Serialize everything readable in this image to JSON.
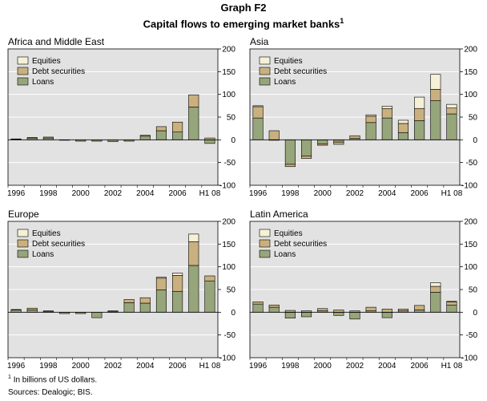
{
  "title": {
    "line1": "Graph F2",
    "line2": "Capital flows to emerging market banks",
    "line2_sup": "1"
  },
  "footnotes": {
    "note_sup": "1",
    "note": "In billions of US dollars.",
    "sources": "Sources: Dealogic; BIS."
  },
  "colors": {
    "equities": "#f5f0d8",
    "debt": "#c9b07e",
    "loans": "#97a57a",
    "grid": "#ffffff",
    "frame": "#000000"
  },
  "chart_data": [
    {
      "type": "bar",
      "stacked": true,
      "title": "Africa and Middle East",
      "x": [
        "1996",
        "1997",
        "1998",
        "1999",
        "2000",
        "2001",
        "2002",
        "2003",
        "2004",
        "2005",
        "2006",
        "2007",
        "H1 08"
      ],
      "x_tick_labels": [
        "1996",
        "1998",
        "2000",
        "2002",
        "2004",
        "2006",
        "H1 08"
      ],
      "ylim": [
        -100,
        200
      ],
      "y_ticks": [
        200,
        150,
        100,
        50,
        0,
        -50,
        -100
      ],
      "legend": [
        "Equities",
        "Debt securities",
        "Loans"
      ],
      "legend_position": "top-left",
      "series": [
        {
          "name": "Equities",
          "values": [
            0,
            0,
            0,
            0,
            0,
            0,
            0,
            0,
            0,
            0,
            0,
            0,
            0
          ]
        },
        {
          "name": "Debt securities",
          "values": [
            1,
            1,
            2,
            0,
            0,
            0,
            0,
            0,
            2,
            9,
            22,
            27,
            4
          ]
        },
        {
          "name": "Loans",
          "values": [
            1,
            4,
            4,
            -1,
            -3,
            -3,
            -4,
            -3,
            8,
            20,
            17,
            72,
            -8
          ]
        }
      ]
    },
    {
      "type": "bar",
      "stacked": true,
      "title": "Asia",
      "x": [
        "1996",
        "1997",
        "1998",
        "1999",
        "2000",
        "2001",
        "2002",
        "2003",
        "2004",
        "2005",
        "2006",
        "2007",
        "H1 08"
      ],
      "x_tick_labels": [
        "1996",
        "1998",
        "2000",
        "2002",
        "2004",
        "2006",
        "H1 08"
      ],
      "ylim": [
        -100,
        200
      ],
      "y_ticks": [
        200,
        150,
        100,
        50,
        0,
        -50,
        -100
      ],
      "legend": [
        "Equities",
        "Debt securities",
        "Loans"
      ],
      "legend_position": "top-left",
      "series": [
        {
          "name": "Equities",
          "values": [
            2,
            0,
            0,
            0,
            0,
            0,
            0,
            3,
            5,
            7,
            25,
            33,
            8
          ]
        },
        {
          "name": "Debt securities",
          "values": [
            25,
            20,
            -5,
            -5,
            -3,
            -5,
            6,
            14,
            21,
            20,
            27,
            25,
            13
          ]
        },
        {
          "name": "Loans",
          "values": [
            48,
            -1,
            -54,
            -36,
            -9,
            -5,
            3,
            38,
            48,
            16,
            42,
            86,
            57
          ]
        }
      ]
    },
    {
      "type": "bar",
      "stacked": true,
      "title": "Europe",
      "x": [
        "1996",
        "1997",
        "1998",
        "1999",
        "2000",
        "2001",
        "2002",
        "2003",
        "2004",
        "2005",
        "2006",
        "2007",
        "H1 08"
      ],
      "x_tick_labels": [
        "1996",
        "1998",
        "2000",
        "2002",
        "2004",
        "2006",
        "H1 08"
      ],
      "ylim": [
        -100,
        200
      ],
      "y_ticks": [
        200,
        150,
        100,
        50,
        0,
        -50,
        -100
      ],
      "legend": [
        "Equities",
        "Debt securities",
        "Loans"
      ],
      "legend_position": "top-left",
      "series": [
        {
          "name": "Equities",
          "values": [
            0,
            0,
            0,
            0,
            0,
            0,
            0,
            0,
            0,
            2,
            5,
            17,
            0
          ]
        },
        {
          "name": "Debt securities",
          "values": [
            1,
            4,
            1,
            0,
            0,
            0,
            1,
            7,
            12,
            26,
            35,
            52,
            11
          ]
        },
        {
          "name": "Loans",
          "values": [
            5,
            5,
            2,
            -3,
            -3,
            -12,
            2,
            21,
            20,
            49,
            46,
            103,
            69
          ]
        }
      ]
    },
    {
      "type": "bar",
      "stacked": true,
      "title": "Latin America",
      "x": [
        "1996",
        "1997",
        "1998",
        "1999",
        "2000",
        "2001",
        "2002",
        "2003",
        "2004",
        "2005",
        "2006",
        "2007",
        "H1 08"
      ],
      "x_tick_labels": [
        "1996",
        "1998",
        "2000",
        "2002",
        "2004",
        "2006",
        "H1 08"
      ],
      "ylim": [
        -100,
        200
      ],
      "y_ticks": [
        200,
        150,
        100,
        50,
        0,
        -50,
        -100
      ],
      "legend": [
        "Equities",
        "Debt securities",
        "Loans"
      ],
      "legend_position": "top-left",
      "series": [
        {
          "name": "Equities",
          "values": [
            0,
            0,
            0,
            0,
            0,
            0,
            0,
            0,
            0,
            0,
            0,
            8,
            1
          ]
        },
        {
          "name": "Debt securities",
          "values": [
            5,
            5,
            4,
            3,
            5,
            5,
            3,
            8,
            7,
            4,
            10,
            13,
            7
          ]
        },
        {
          "name": "Loans",
          "values": [
            18,
            11,
            -13,
            -10,
            3,
            -7,
            -15,
            3,
            -12,
            3,
            5,
            44,
            16
          ]
        }
      ]
    }
  ]
}
